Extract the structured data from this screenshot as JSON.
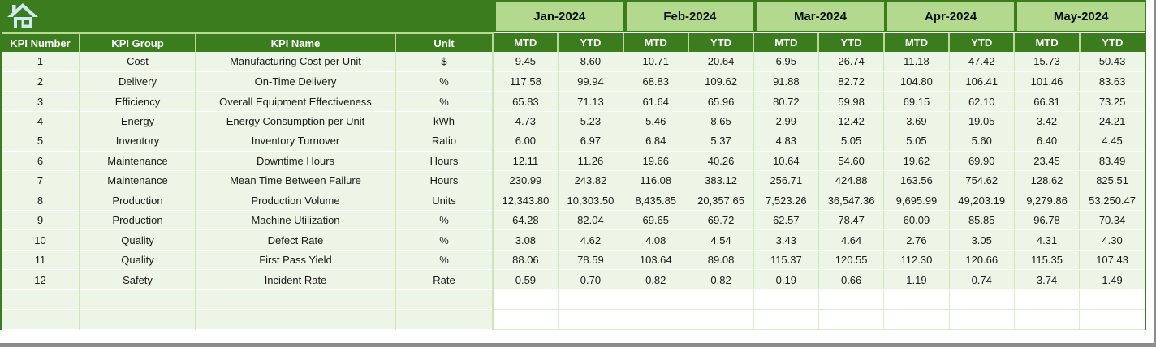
{
  "icons": {
    "home": "home-icon"
  },
  "colors": {
    "dark_green": "#3b7c1f",
    "light_green": "#b3d98f",
    "row_background": "#edf6e6",
    "grid_line": "#cde5bb",
    "icon_blue": "#cfe9f2",
    "frame_gray": "#8d8d8d"
  },
  "table": {
    "fixed_headers": [
      "KPI Number",
      "KPI Group",
      "KPI Name",
      "Unit"
    ],
    "months": [
      "Jan-2024",
      "Feb-2024",
      "Mar-2024",
      "Apr-2024",
      "May-2024"
    ],
    "period_headers": [
      "MTD",
      "YTD"
    ],
    "empty_row_count": 2,
    "rows": [
      {
        "kpi_number": "1",
        "kpi_group": "Cost",
        "kpi_name": "Manufacturing Cost per Unit",
        "unit": "$",
        "values": [
          "9.45",
          "8.60",
          "10.71",
          "20.64",
          "6.95",
          "26.74",
          "11.18",
          "47.42",
          "15.73",
          "50.43"
        ]
      },
      {
        "kpi_number": "2",
        "kpi_group": "Delivery",
        "kpi_name": "On-Time Delivery",
        "unit": "%",
        "values": [
          "117.58",
          "99.94",
          "68.83",
          "109.62",
          "91.88",
          "82.72",
          "104.80",
          "106.41",
          "101.46",
          "83.63"
        ]
      },
      {
        "kpi_number": "3",
        "kpi_group": "Efficiency",
        "kpi_name": "Overall Equipment Effectiveness",
        "unit": "%",
        "values": [
          "65.83",
          "71.13",
          "61.64",
          "65.96",
          "80.72",
          "59.98",
          "69.15",
          "62.10",
          "66.31",
          "73.25"
        ]
      },
      {
        "kpi_number": "4",
        "kpi_group": "Energy",
        "kpi_name": "Energy Consumption per Unit",
        "unit": "kWh",
        "values": [
          "4.73",
          "5.23",
          "5.46",
          "8.65",
          "2.99",
          "12.42",
          "3.69",
          "19.05",
          "3.42",
          "24.21"
        ]
      },
      {
        "kpi_number": "5",
        "kpi_group": "Inventory",
        "kpi_name": "Inventory Turnover",
        "unit": "Ratio",
        "values": [
          "6.00",
          "6.97",
          "6.84",
          "5.37",
          "4.83",
          "5.05",
          "5.05",
          "5.60",
          "6.40",
          "4.45"
        ]
      },
      {
        "kpi_number": "6",
        "kpi_group": "Maintenance",
        "kpi_name": "Downtime Hours",
        "unit": "Hours",
        "values": [
          "12.11",
          "11.26",
          "19.66",
          "40.26",
          "10.64",
          "54.60",
          "19.62",
          "69.90",
          "23.45",
          "83.49"
        ]
      },
      {
        "kpi_number": "7",
        "kpi_group": "Maintenance",
        "kpi_name": "Mean Time Between Failure",
        "unit": "Hours",
        "values": [
          "230.99",
          "243.82",
          "116.08",
          "383.12",
          "256.71",
          "424.88",
          "163.56",
          "754.62",
          "128.62",
          "825.51"
        ]
      },
      {
        "kpi_number": "8",
        "kpi_group": "Production",
        "kpi_name": "Production Volume",
        "unit": "Units",
        "values": [
          "12,343.80",
          "10,303.50",
          "8,435.85",
          "20,357.65",
          "7,523.26",
          "36,547.36",
          "9,695.99",
          "49,203.19",
          "9,279.86",
          "53,250.47"
        ]
      },
      {
        "kpi_number": "9",
        "kpi_group": "Production",
        "kpi_name": "Machine Utilization",
        "unit": "%",
        "values": [
          "64.28",
          "82.04",
          "69.65",
          "69.72",
          "62.57",
          "78.47",
          "60.09",
          "85.85",
          "96.78",
          "70.34"
        ]
      },
      {
        "kpi_number": "10",
        "kpi_group": "Quality",
        "kpi_name": "Defect Rate",
        "unit": "%",
        "values": [
          "3.08",
          "4.62",
          "4.08",
          "4.54",
          "3.43",
          "4.64",
          "2.76",
          "3.05",
          "4.31",
          "4.30"
        ]
      },
      {
        "kpi_number": "11",
        "kpi_group": "Quality",
        "kpi_name": "First Pass Yield",
        "unit": "%",
        "values": [
          "88.06",
          "78.59",
          "103.64",
          "89.08",
          "115.37",
          "120.55",
          "112.30",
          "120.66",
          "115.35",
          "107.43"
        ]
      },
      {
        "kpi_number": "12",
        "kpi_group": "Safety",
        "kpi_name": "Incident Rate",
        "unit": "Rate",
        "values": [
          "0.59",
          "0.70",
          "0.82",
          "0.82",
          "0.19",
          "0.66",
          "1.19",
          "0.74",
          "3.74",
          "1.49"
        ]
      }
    ]
  }
}
